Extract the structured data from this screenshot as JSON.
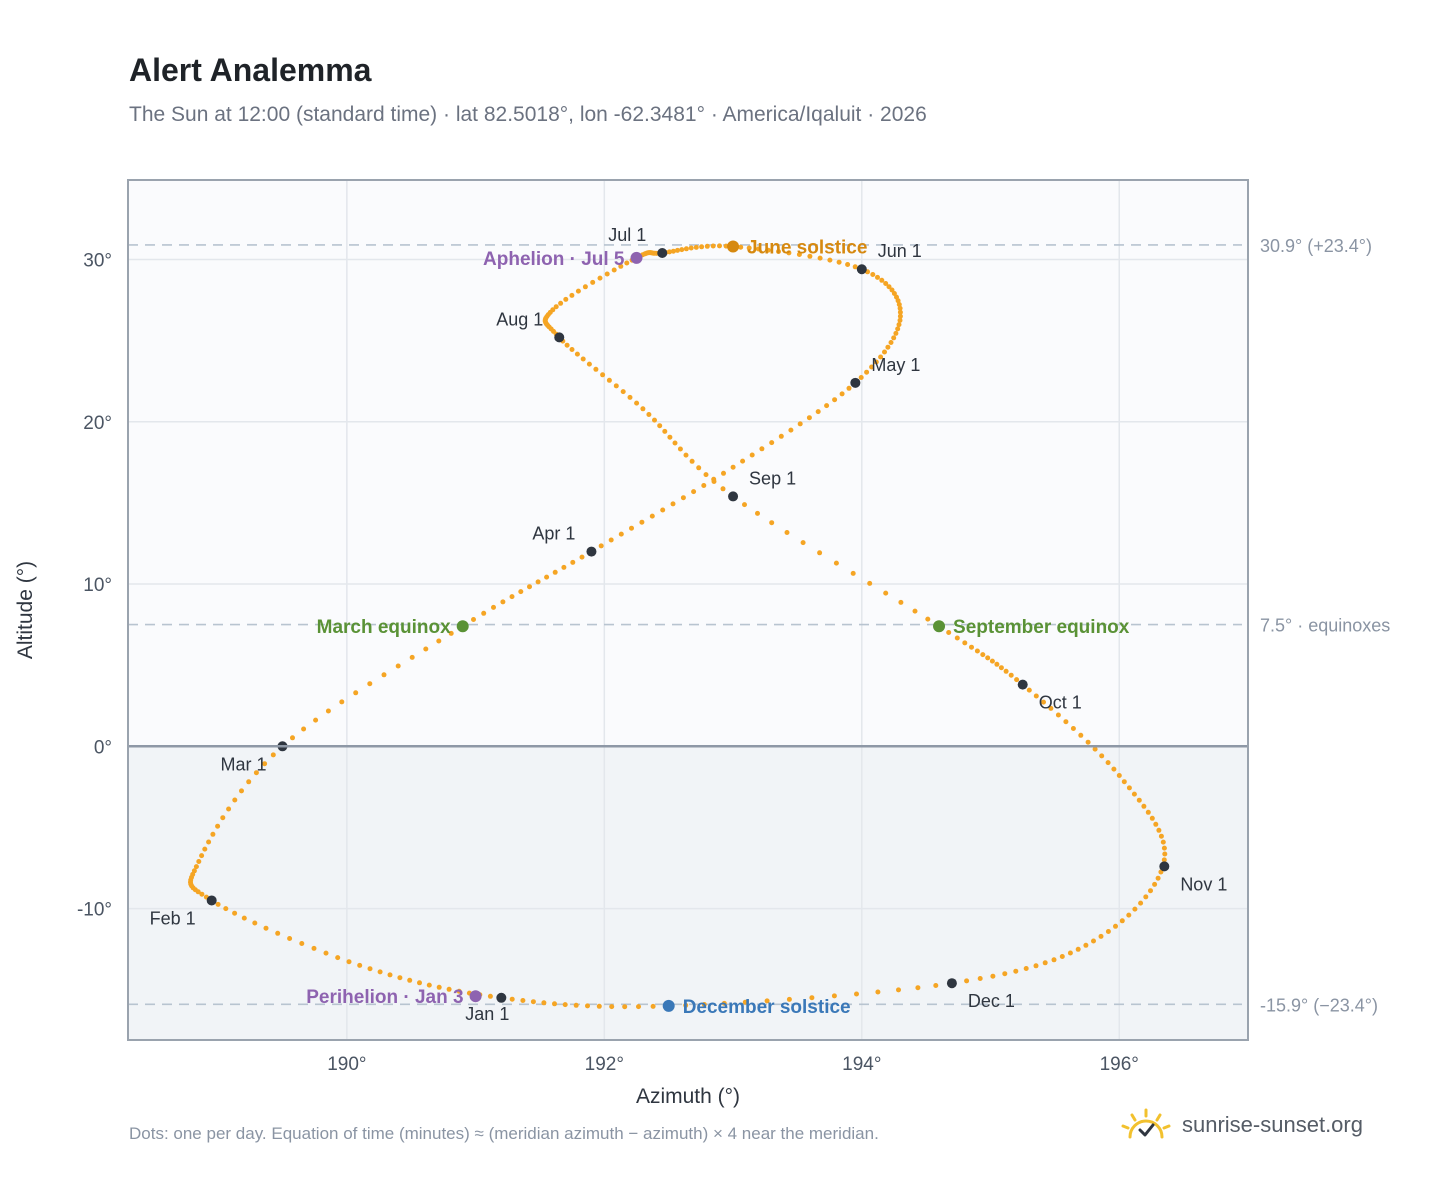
{
  "header": {
    "title": "Alert Analemma",
    "subtitle": "The Sun at 12:00 (standard time) · lat 82.5018°, lon -62.3481° · America/Iqaluit · 2026"
  },
  "footer": {
    "note": "Dots: one per day. Equation of time (minutes) ≈ (meridian azimuth − azimuth) × 4 near the meridian.",
    "brand": "sunrise-sunset.org"
  },
  "chart_data": {
    "type": "scatter",
    "xlabel": "Azimuth (°)",
    "ylabel": "Altitude (°)",
    "xlim": [
      188.3,
      197.0
    ],
    "ylim": [
      -18.1,
      34.9
    ],
    "xticks": [
      190,
      192,
      194,
      196
    ],
    "xtick_labels": [
      "190°",
      "192°",
      "194°",
      "196°"
    ],
    "yticks": [
      -10,
      0,
      10,
      20,
      30
    ],
    "ytick_labels": [
      "-10°",
      "0°",
      "10°",
      "20°",
      "30°"
    ],
    "grid": true,
    "colors": {
      "path": "#f5a524",
      "month_marker": "#2f3640",
      "june_solstice": "#d68910",
      "december_solstice": "#3a78b8",
      "equinox": "#5a9236",
      "apsis": "#8e63b0",
      "reference_line": "#b8c4d0",
      "below_horizon_fill": "#f1f4f7",
      "plot_fill": "#fafbfd"
    },
    "reference_lines": [
      {
        "y": 30.9,
        "label": "30.9° (+23.4°)"
      },
      {
        "y": 7.5,
        "label": "7.5° · equinoxes"
      },
      {
        "y": -15.9,
        "label": "-15.9° (−23.4°)"
      }
    ],
    "daily_path_anchors": [
      {
        "date": "Jan 1",
        "az": 191.2,
        "alt": -15.5
      },
      {
        "date": "Jan 15",
        "az": 190.1,
        "alt": -13.5
      },
      {
        "date": "Feb 1",
        "az": 188.95,
        "alt": -9.5
      },
      {
        "date": "Feb 12",
        "az": 188.85,
        "alt": -7.1
      },
      {
        "date": "Mar 1",
        "az": 189.5,
        "alt": 0.0
      },
      {
        "date": "Mar 20",
        "az": 190.9,
        "alt": 7.4
      },
      {
        "date": "Apr 1",
        "az": 191.9,
        "alt": 12.0
      },
      {
        "date": "Apr 15",
        "az": 193.0,
        "alt": 17.2
      },
      {
        "date": "May 1",
        "az": 193.95,
        "alt": 22.4
      },
      {
        "date": "May 14",
        "az": 194.3,
        "alt": 26.5
      },
      {
        "date": "Jun 1",
        "az": 194.0,
        "alt": 29.4
      },
      {
        "date": "Jun 21",
        "az": 193.0,
        "alt": 30.8
      },
      {
        "date": "Jul 1",
        "az": 192.45,
        "alt": 30.4
      },
      {
        "date": "Jul 5",
        "az": 192.25,
        "alt": 30.1
      },
      {
        "date": "Jul 26",
        "az": 191.6,
        "alt": 26.9
      },
      {
        "date": "Aug 1",
        "az": 191.65,
        "alt": 25.2
      },
      {
        "date": "Aug 15",
        "az": 192.3,
        "alt": 20.8
      },
      {
        "date": "Sep 1",
        "az": 193.0,
        "alt": 15.4
      },
      {
        "date": "Sep 22",
        "az": 194.6,
        "alt": 7.4
      },
      {
        "date": "Oct 1",
        "az": 195.25,
        "alt": 3.8
      },
      {
        "date": "Oct 15",
        "az": 196.0,
        "alt": -1.8
      },
      {
        "date": "Nov 3",
        "az": 196.35,
        "alt": -7.0
      },
      {
        "date": "Nov 15",
        "az": 195.8,
        "alt": -12.0
      },
      {
        "date": "Dec 1",
        "az": 194.7,
        "alt": -14.6
      },
      {
        "date": "Dec 21",
        "az": 192.5,
        "alt": -16.0
      },
      {
        "date": "Jan 1 (next)",
        "az": 191.2,
        "alt": -15.5
      }
    ],
    "month_markers": [
      {
        "label": "Jan 1",
        "az": 191.2,
        "alt": -15.5,
        "label_pos": "bottom"
      },
      {
        "label": "Feb 1",
        "az": 188.95,
        "alt": -9.5,
        "label_pos": "bottom-left"
      },
      {
        "label": "Mar 1",
        "az": 189.5,
        "alt": 0.0,
        "label_pos": "bottom-left"
      },
      {
        "label": "Apr 1",
        "az": 191.9,
        "alt": 12.0,
        "label_pos": "top-left"
      },
      {
        "label": "May 1",
        "az": 193.95,
        "alt": 22.4,
        "label_pos": "top-right"
      },
      {
        "label": "Jun 1",
        "az": 194.0,
        "alt": 29.4,
        "label_pos": "top-right"
      },
      {
        "label": "Jul 1",
        "az": 192.45,
        "alt": 30.4,
        "label_pos": "top-left"
      },
      {
        "label": "Aug 1",
        "az": 191.65,
        "alt": 25.2,
        "label_pos": "top-left"
      },
      {
        "label": "Sep 1",
        "az": 193.0,
        "alt": 15.4,
        "label_pos": "top-right"
      },
      {
        "label": "Oct 1",
        "az": 195.25,
        "alt": 3.8,
        "label_pos": "bottom-right"
      },
      {
        "label": "Nov 1",
        "az": 196.35,
        "alt": -7.4,
        "label_pos": "bottom-right"
      },
      {
        "label": "Dec 1",
        "az": 194.7,
        "alt": -14.6,
        "label_pos": "bottom-right"
      }
    ],
    "events": [
      {
        "label": "June solstice",
        "az": 193.0,
        "alt": 30.8,
        "color": "#d68910",
        "label_pos": "right"
      },
      {
        "label": "Aphelion · Jul 5",
        "az": 192.25,
        "alt": 30.1,
        "color": "#8e63b0",
        "label_pos": "left"
      },
      {
        "label": "March equinox",
        "az": 190.9,
        "alt": 7.4,
        "color": "#5a9236",
        "label_pos": "left"
      },
      {
        "label": "September equinox",
        "az": 194.6,
        "alt": 7.4,
        "color": "#5a9236",
        "label_pos": "right"
      },
      {
        "label": "Perihelion · Jan 3",
        "az": 191.0,
        "alt": -15.4,
        "color": "#8e63b0",
        "label_pos": "left"
      },
      {
        "label": "December solstice",
        "az": 192.5,
        "alt": -16.0,
        "color": "#3a78b8",
        "label_pos": "right"
      }
    ]
  },
  "icons": {
    "logo": "sunrise-logo-icon"
  }
}
